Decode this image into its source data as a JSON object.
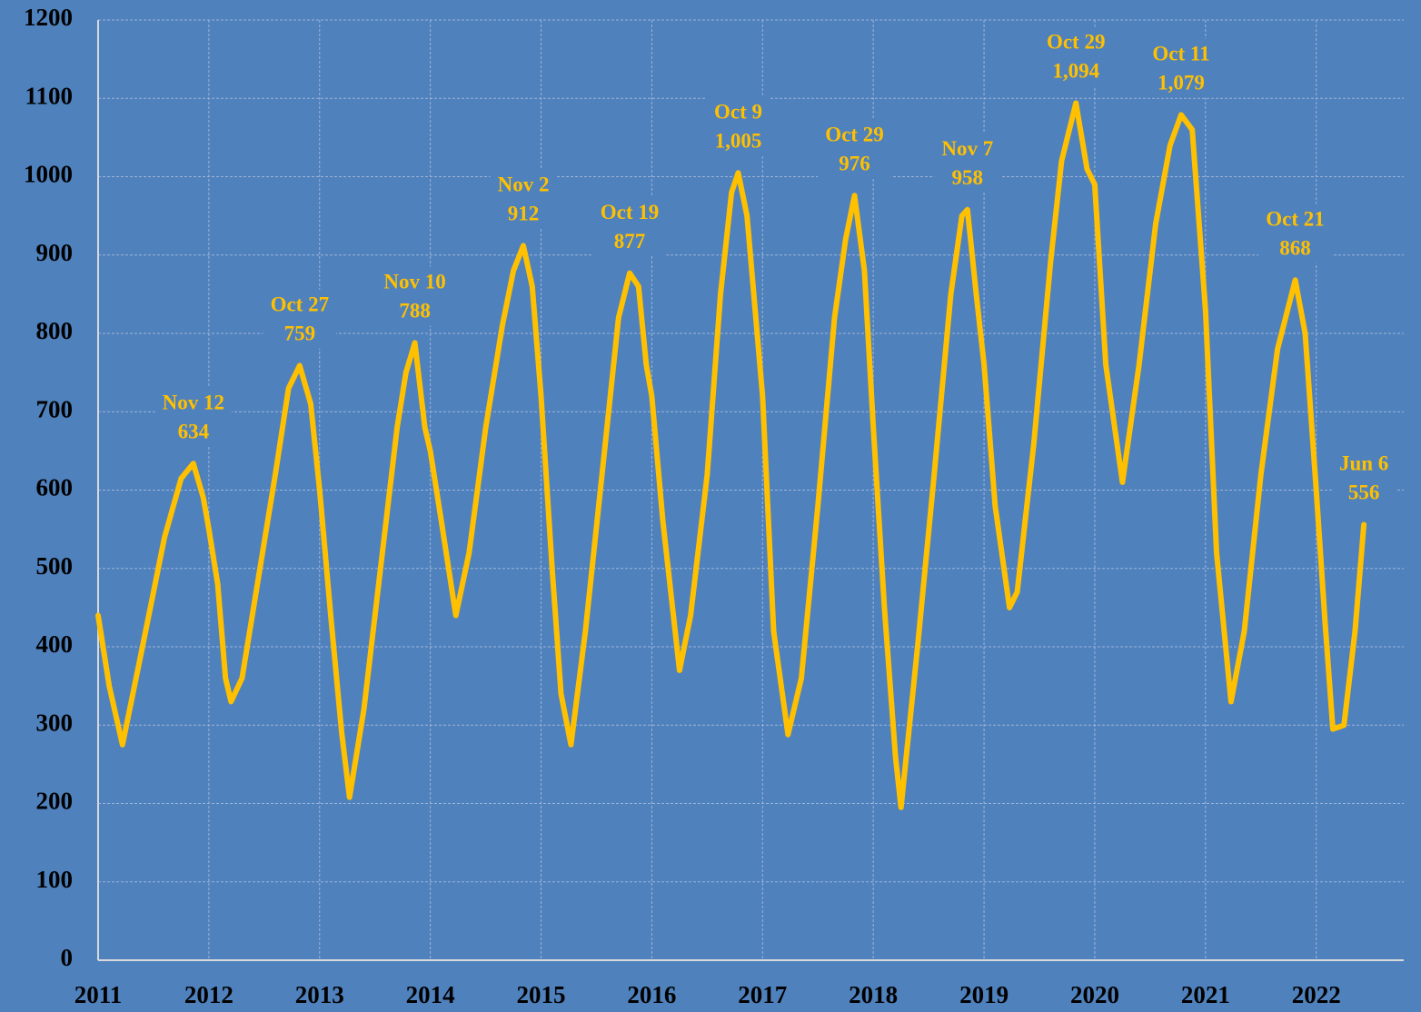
{
  "chart_data": {
    "type": "line",
    "color": "#ffc000",
    "background": "#4f81bd",
    "grid": true,
    "xlim": [
      2011,
      2022.79
    ],
    "xticks": [
      2011,
      2012,
      2013,
      2014,
      2015,
      2016,
      2017,
      2018,
      2019,
      2020,
      2021,
      2022
    ],
    "ylim": [
      0,
      1200
    ],
    "yticks": [
      0,
      100,
      200,
      300,
      400,
      500,
      600,
      700,
      800,
      900,
      1000,
      1100,
      1200
    ],
    "x": [
      2011.0,
      2011.1,
      2011.22,
      2011.4,
      2011.6,
      2011.75,
      2011.86,
      2011.95,
      2012.0,
      2012.08,
      2012.15,
      2012.2,
      2012.3,
      2012.45,
      2012.6,
      2012.72,
      2012.82,
      2012.92,
      2013.0,
      2013.1,
      2013.2,
      2013.27,
      2013.4,
      2013.55,
      2013.7,
      2013.78,
      2013.86,
      2013.95,
      2014.0,
      2014.1,
      2014.23,
      2014.35,
      2014.5,
      2014.65,
      2014.75,
      2014.84,
      2014.92,
      2015.0,
      2015.1,
      2015.18,
      2015.27,
      2015.4,
      2015.55,
      2015.7,
      2015.8,
      2015.88,
      2015.95,
      2016.0,
      2016.1,
      2016.25,
      2016.35,
      2016.5,
      2016.62,
      2016.72,
      2016.78,
      2016.86,
      2017.0,
      2017.1,
      2017.23,
      2017.35,
      2017.5,
      2017.65,
      2017.75,
      2017.83,
      2017.92,
      2018.0,
      2018.1,
      2018.2,
      2018.25,
      2018.4,
      2018.55,
      2018.7,
      2018.8,
      2018.85,
      2018.93,
      2019.0,
      2019.1,
      2019.23,
      2019.3,
      2019.45,
      2019.6,
      2019.7,
      2019.83,
      2019.93,
      2020.0,
      2020.1,
      2020.25,
      2020.4,
      2020.55,
      2020.68,
      2020.78,
      2020.88,
      2021.0,
      2021.1,
      2021.23,
      2021.35,
      2021.5,
      2021.65,
      2021.81,
      2021.9,
      2022.0,
      2022.08,
      2022.15,
      2022.25,
      2022.35,
      2022.43
    ],
    "values": [
      440,
      350,
      275,
      400,
      540,
      615,
      634,
      590,
      550,
      480,
      360,
      330,
      360,
      490,
      620,
      730,
      759,
      710,
      600,
      440,
      290,
      208,
      320,
      500,
      680,
      750,
      788,
      680,
      650,
      560,
      440,
      520,
      680,
      810,
      880,
      912,
      860,
      720,
      500,
      340,
      275,
      420,
      620,
      820,
      877,
      860,
      760,
      720,
      560,
      370,
      440,
      620,
      850,
      980,
      1005,
      950,
      720,
      420,
      288,
      360,
      580,
      820,
      920,
      976,
      880,
      680,
      450,
      260,
      195,
      400,
      620,
      850,
      950,
      958,
      850,
      760,
      580,
      450,
      470,
      660,
      890,
      1020,
      1094,
      1010,
      990,
      760,
      610,
      760,
      940,
      1040,
      1079,
      1060,
      830,
      520,
      330,
      420,
      620,
      780,
      868,
      800,
      600,
      430,
      295,
      300,
      420,
      556
    ],
    "annotations": [
      {
        "text": "Nov 12",
        "x": 2011.86,
        "value": 634
      },
      {
        "text": "Oct 27",
        "x": 2012.82,
        "value": 759
      },
      {
        "text": "Nov 10",
        "x": 2013.86,
        "value": 788
      },
      {
        "text": "Nov 2",
        "x": 2014.84,
        "value": 912
      },
      {
        "text": "Oct 19",
        "x": 2015.8,
        "value": 877
      },
      {
        "text": "Oct 9",
        "x": 2016.78,
        "value": 1005,
        "label": "1,005"
      },
      {
        "text": "Oct 29",
        "x": 2017.83,
        "value": 976
      },
      {
        "text": "Nov 7",
        "x": 2018.85,
        "value": 958
      },
      {
        "text": "Oct 29",
        "x": 2019.83,
        "value": 1094,
        "label": "1,094"
      },
      {
        "text": "Oct 11",
        "x": 2020.78,
        "value": 1079,
        "label": "1,079"
      },
      {
        "text": "Oct 21",
        "x": 2021.81,
        "value": 868
      },
      {
        "text": "Jun 6",
        "x": 2022.43,
        "value": 556
      }
    ]
  }
}
